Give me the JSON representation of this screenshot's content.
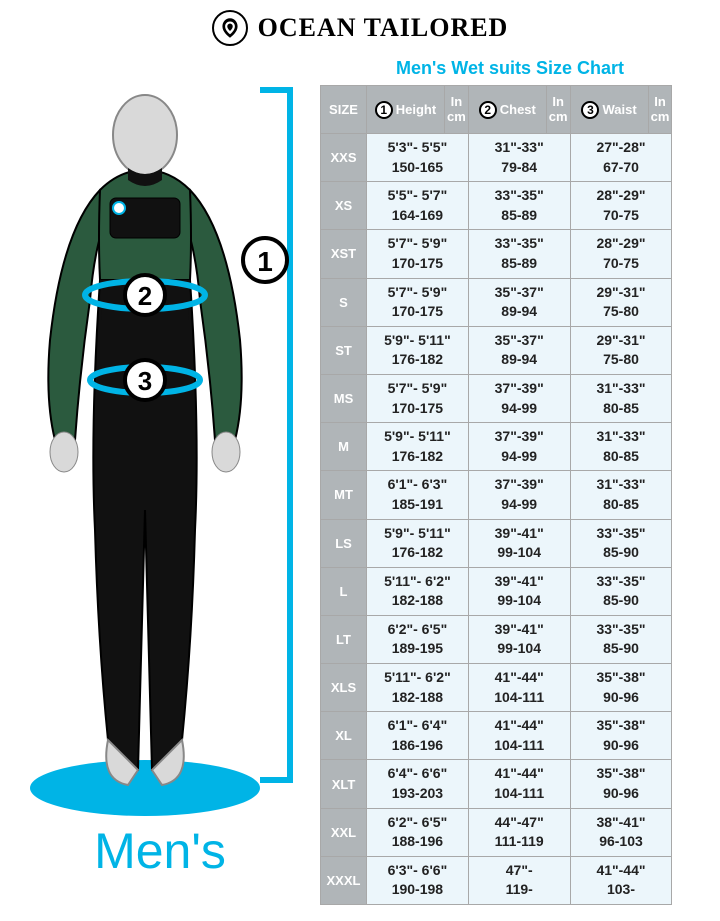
{
  "brand": {
    "name": "OCEAN TAILORED"
  },
  "chart": {
    "title": "Men's Wet suits Size Chart",
    "title_color": "#00b4e6",
    "header_bg": "#b0b5b8",
    "header_fg": "#ffffff",
    "cell_bg": "#ecf6fb",
    "border_color": "#a8a8a8"
  },
  "figure": {
    "label": "Men's",
    "label_color": "#00b4e6",
    "accent": "#00b4e6",
    "suit_upper": "#2b5a3e",
    "suit_lower": "#111111",
    "skin": "#d9d9d9",
    "shadow": "#00b4e6",
    "markers": {
      "height": "1",
      "chest": "2",
      "waist": "3"
    }
  },
  "columns": {
    "size": "SIZE",
    "height": {
      "num": "1",
      "label": "Height",
      "unit1": "In",
      "unit2": "cm"
    },
    "chest": {
      "num": "2",
      "label": "Chest",
      "unit1": "In",
      "unit2": "cm"
    },
    "waist": {
      "num": "3",
      "label": "Waist",
      "unit1": "In",
      "unit2": "cm"
    }
  },
  "rows": [
    {
      "size": "XXS",
      "height_imp": "5'3\"- 5'5\"",
      "height_met": "150-165",
      "chest_imp": "31\"-33\"",
      "chest_met": "79-84",
      "waist_imp": "27\"-28\"",
      "waist_met": "67-70"
    },
    {
      "size": "XS",
      "height_imp": "5'5\"- 5'7\"",
      "height_met": "164-169",
      "chest_imp": "33\"-35\"",
      "chest_met": "85-89",
      "waist_imp": "28\"-29\"",
      "waist_met": "70-75"
    },
    {
      "size": "XST",
      "height_imp": "5'7\"- 5'9\"",
      "height_met": "170-175",
      "chest_imp": "33\"-35\"",
      "chest_met": "85-89",
      "waist_imp": "28\"-29\"",
      "waist_met": "70-75"
    },
    {
      "size": "S",
      "height_imp": "5'7\"- 5'9\"",
      "height_met": "170-175",
      "chest_imp": "35\"-37\"",
      "chest_met": "89-94",
      "waist_imp": "29\"-31\"",
      "waist_met": "75-80"
    },
    {
      "size": "ST",
      "height_imp": "5'9\"- 5'11\"",
      "height_met": "176-182",
      "chest_imp": "35\"-37\"",
      "chest_met": "89-94",
      "waist_imp": "29\"-31\"",
      "waist_met": "75-80"
    },
    {
      "size": "MS",
      "height_imp": "5'7\"- 5'9\"",
      "height_met": "170-175",
      "chest_imp": "37\"-39\"",
      "chest_met": "94-99",
      "waist_imp": "31\"-33\"",
      "waist_met": "80-85"
    },
    {
      "size": "M",
      "height_imp": "5'9\"- 5'11\"",
      "height_met": "176-182",
      "chest_imp": "37\"-39\"",
      "chest_met": "94-99",
      "waist_imp": "31\"-33\"",
      "waist_met": "80-85"
    },
    {
      "size": "MT",
      "height_imp": "6'1\"- 6'3\"",
      "height_met": "185-191",
      "chest_imp": "37\"-39\"",
      "chest_met": "94-99",
      "waist_imp": "31\"-33\"",
      "waist_met": "80-85"
    },
    {
      "size": "LS",
      "height_imp": "5'9\"- 5'11\"",
      "height_met": "176-182",
      "chest_imp": "39\"-41\"",
      "chest_met": "99-104",
      "waist_imp": "33\"-35\"",
      "waist_met": "85-90"
    },
    {
      "size": "L",
      "height_imp": "5'11\"- 6'2\"",
      "height_met": "182-188",
      "chest_imp": "39\"-41\"",
      "chest_met": "99-104",
      "waist_imp": "33\"-35\"",
      "waist_met": "85-90"
    },
    {
      "size": "LT",
      "height_imp": "6'2\"- 6'5\"",
      "height_met": "189-195",
      "chest_imp": "39\"-41\"",
      "chest_met": "99-104",
      "waist_imp": "33\"-35\"",
      "waist_met": "85-90"
    },
    {
      "size": "XLS",
      "height_imp": "5'11\"- 6'2\"",
      "height_met": "182-188",
      "chest_imp": "41\"-44\"",
      "chest_met": "104-111",
      "waist_imp": "35\"-38\"",
      "waist_met": "90-96"
    },
    {
      "size": "XL",
      "height_imp": "6'1\"- 6'4\"",
      "height_met": "186-196",
      "chest_imp": "41\"-44\"",
      "chest_met": "104-111",
      "waist_imp": "35\"-38\"",
      "waist_met": "90-96"
    },
    {
      "size": "XLT",
      "height_imp": "6'4\"- 6'6\"",
      "height_met": "193-203",
      "chest_imp": "41\"-44\"",
      "chest_met": "104-111",
      "waist_imp": "35\"-38\"",
      "waist_met": "90-96"
    },
    {
      "size": "XXL",
      "height_imp": "6'2\"- 6'5\"",
      "height_met": "188-196",
      "chest_imp": "44\"-47\"",
      "chest_met": "111-119",
      "waist_imp": "38\"-41\"",
      "waist_met": "96-103"
    },
    {
      "size": "XXXL",
      "height_imp": "6'3\"- 6'6\"",
      "height_met": "190-198",
      "chest_imp": "47\"-",
      "chest_met": "119-",
      "waist_imp": "41\"-44\"",
      "waist_met": "103-"
    }
  ]
}
